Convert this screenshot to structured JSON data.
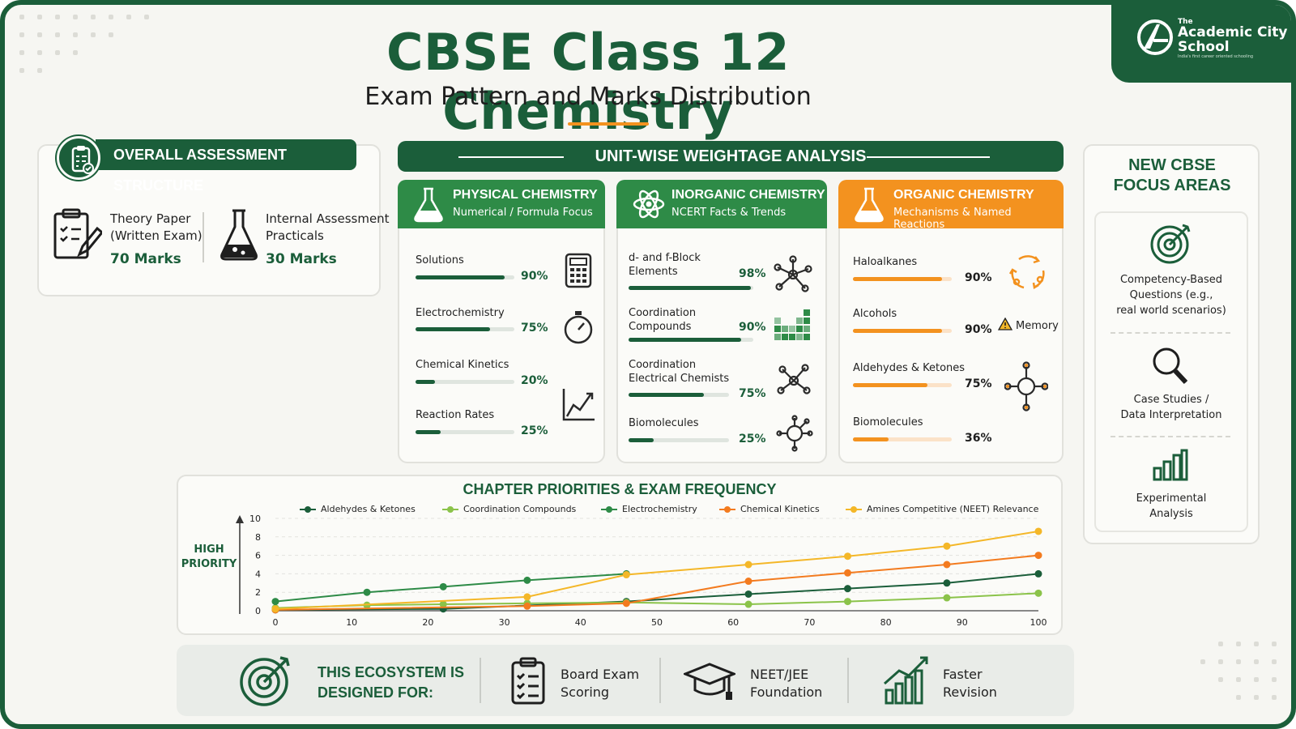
{
  "header": {
    "title": "CBSE Class 12 Chemistry",
    "subtitle": "Exam Pattern and Marks Distribution"
  },
  "logo": {
    "line1": "The",
    "line2": "Academic City",
    "line3": "School",
    "tagline": "India's first career oriented schooling"
  },
  "overall_assessment": {
    "title": "OVERALL ASSESSMENT STRUCTURE",
    "icon": "clipboard-check-icon",
    "items": [
      {
        "line1": "Theory Paper",
        "line2": "(Written Exam)",
        "marks": "70 Marks",
        "icon": "clipboard-pencil-icon"
      },
      {
        "line1": "Internal Assessment",
        "line2": "Practicals",
        "marks": "30 Marks",
        "icon": "flask-icon"
      }
    ]
  },
  "unit_weightage": {
    "title": "UNIT-WISE WEIGHTAGE ANALYSIS",
    "columns": [
      {
        "title": "PHYSICAL CHEMISTRY",
        "subtitle": "Numerical / Formula Focus",
        "color": "#2e8b47",
        "rows": [
          {
            "name": "Solutions",
            "value": 90,
            "label": "90%",
            "icon": "calculator-icon"
          },
          {
            "name": "Electrochemistry",
            "value": 75,
            "label": "75%",
            "icon": "stopwatch-icon"
          },
          {
            "name": "Chemical Kinetics",
            "value": 20,
            "label": "20%",
            "icon": "graph-icon"
          },
          {
            "name": "Reaction Rates",
            "value": 25,
            "label": "25%",
            "icon": "graph-icon"
          }
        ]
      },
      {
        "title": "INORGANIC CHEMISTRY",
        "subtitle": "NCERT Facts & Trends",
        "color": "#2e8b47",
        "rows": [
          {
            "name": "d- and f-Block",
            "name2": "Elements",
            "value": 98,
            "label": "98%",
            "icon": "molecule-icon"
          },
          {
            "name": "Coordination",
            "name2": "Compounds",
            "value": 90,
            "label": "90%",
            "icon": "periodic-table-icon"
          },
          {
            "name": "Coordination",
            "name2": "Electrical Chemists",
            "value": 75,
            "label": "75%",
            "icon": "molecule-icon"
          },
          {
            "name": "Biomolecules",
            "value": 25,
            "label": "25%",
            "icon": "molecule-icon"
          }
        ]
      },
      {
        "title": "ORGANIC CHEMISTRY",
        "subtitle": "Mechanisms & Named Reactions",
        "color": "#f3921f",
        "rows": [
          {
            "name": "Haloalkanes",
            "value": 90,
            "label": "90%",
            "icon": "cycle-arrows-icon"
          },
          {
            "name": "Alcohols",
            "value": 90,
            "label": "90%",
            "icon": "warning-icon",
            "note": "Memory"
          },
          {
            "name": "Aldehydes & Ketones",
            "value": 75,
            "label": "75%",
            "icon": "molecule-icon"
          },
          {
            "name": "Biomolecules",
            "value": 36,
            "label": "36%",
            "icon": "none"
          }
        ]
      }
    ]
  },
  "focus_areas": {
    "title_line1": "NEW CBSE",
    "title_line2": "FOCUS AREAS",
    "items": [
      {
        "line1": "Competency-Based",
        "line2": "Questions (e.g.,",
        "line3": "real world scenarios)",
        "icon": "target-icon"
      },
      {
        "line1": "Case Studies /",
        "line2": "Data Interpretation",
        "icon": "magnifier-icon"
      },
      {
        "line1": "Experimental",
        "line2": "Analysis",
        "icon": "bar-chart-icon"
      }
    ]
  },
  "chart_data": {
    "type": "line",
    "title": "CHAPTER PRIORITIES & EXAM FREQUENCY",
    "ylabel_line1": "HIGH",
    "ylabel_line2": "PRIORITY",
    "xlim": [
      0,
      100
    ],
    "ylim": [
      0,
      10
    ],
    "x_ticks": [
      0,
      10,
      20,
      30,
      40,
      50,
      60,
      70,
      80,
      90,
      100
    ],
    "y_ticks": [
      0,
      2,
      4,
      6,
      8,
      10
    ],
    "grid": true,
    "legend_position": "top",
    "series": [
      {
        "name": "Aldehydes & Ketones",
        "color": "#1b5e3a",
        "x": [
          0,
          22,
          46,
          62,
          75,
          88,
          100
        ],
        "y": [
          0.1,
          0.2,
          1.0,
          1.8,
          2.4,
          3.0,
          4.0
        ]
      },
      {
        "name": "Coordination Compounds",
        "color": "#8bc34a",
        "x": [
          0,
          12,
          22,
          33,
          46,
          62,
          75,
          88,
          100
        ],
        "y": [
          0.3,
          0.6,
          0.7,
          0.8,
          0.9,
          0.7,
          1.0,
          1.4,
          1.9
        ]
      },
      {
        "name": "Electrochemistry",
        "color": "#2e8b47",
        "x": [
          0,
          12,
          22,
          33,
          46
        ],
        "y": [
          1.0,
          2.0,
          2.6,
          3.3,
          4.0
        ]
      },
      {
        "name": "Chemical Kinetics",
        "color": "#f37b1f",
        "x": [
          0,
          33,
          46,
          62,
          75,
          88,
          100
        ],
        "y": [
          0.1,
          0.5,
          0.8,
          3.2,
          4.1,
          5.0,
          6.0
        ]
      },
      {
        "name": "Amines Competitive (NEET) Relevance",
        "color": "#f4b728",
        "x": [
          0,
          33,
          46,
          62,
          75,
          88,
          100
        ],
        "y": [
          0.2,
          1.5,
          3.9,
          5.0,
          5.9,
          7.0,
          8.6
        ]
      }
    ]
  },
  "ecosystem": {
    "title_line1": "THIS ECOSYSTEM IS",
    "title_line2": "DESIGNED FOR:",
    "items": [
      {
        "line1": "Board Exam",
        "line2": "Scoring",
        "icon": "checklist-icon"
      },
      {
        "line1": "NEET/JEE",
        "line2": "Foundation",
        "icon": "graduation-cap-icon"
      },
      {
        "line1": "Faster",
        "line2": "Revision",
        "icon": "growth-chart-icon"
      }
    ]
  }
}
